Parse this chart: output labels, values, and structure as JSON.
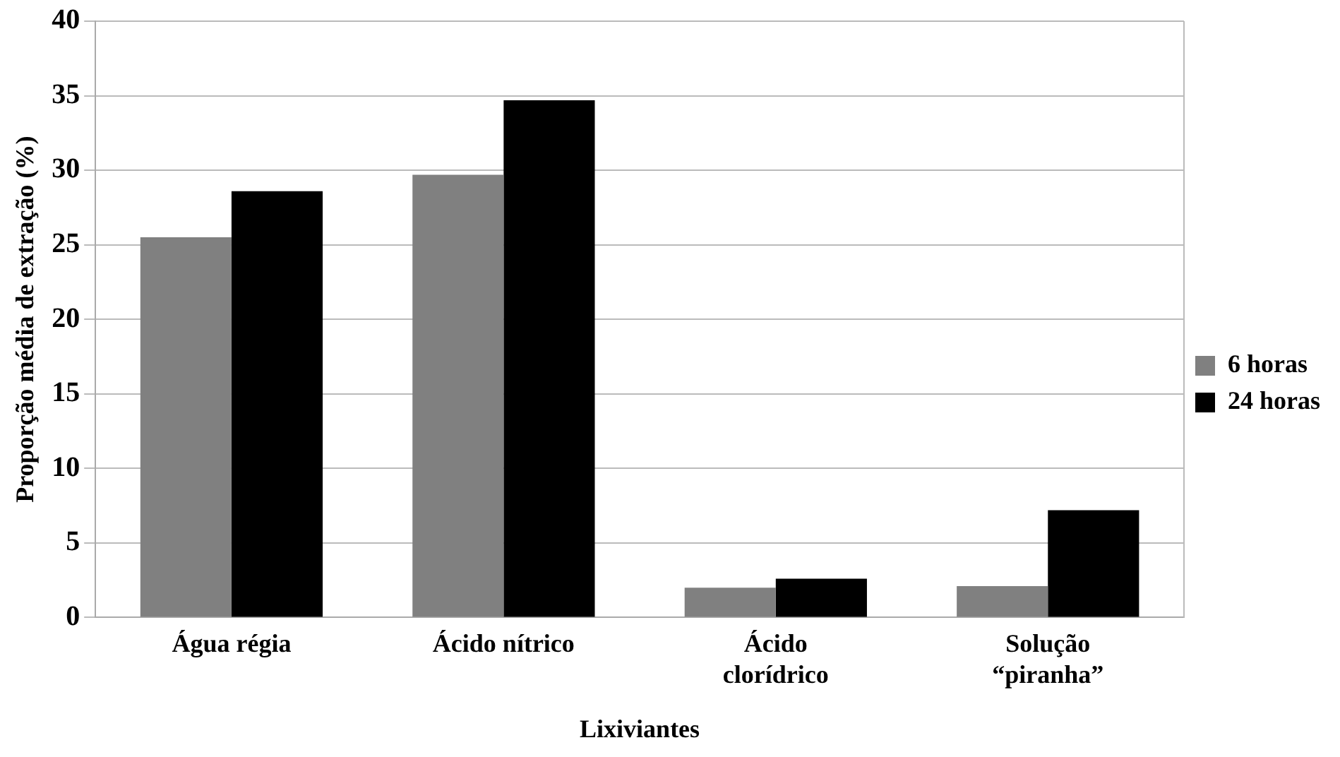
{
  "chart_data": {
    "type": "bar",
    "xlabel": "Lixiviantes",
    "ylabel": "Proporção média de extração (%)",
    "categories": [
      "Água régia",
      "Ácido nítrico",
      "Ácido\nclorídrico",
      "Solução\n“piranha”"
    ],
    "series": [
      {
        "name": "6 horas",
        "color": "#808080",
        "values": [
          25.5,
          29.7,
          2.0,
          2.1
        ]
      },
      {
        "name": "24 horas",
        "color": "#000000",
        "values": [
          28.6,
          34.7,
          2.6,
          7.2
        ]
      }
    ],
    "ylim": [
      0,
      40
    ],
    "yticks": [
      0,
      5,
      10,
      15,
      20,
      25,
      30,
      35,
      40
    ],
    "grid": "y",
    "legend": "right"
  }
}
